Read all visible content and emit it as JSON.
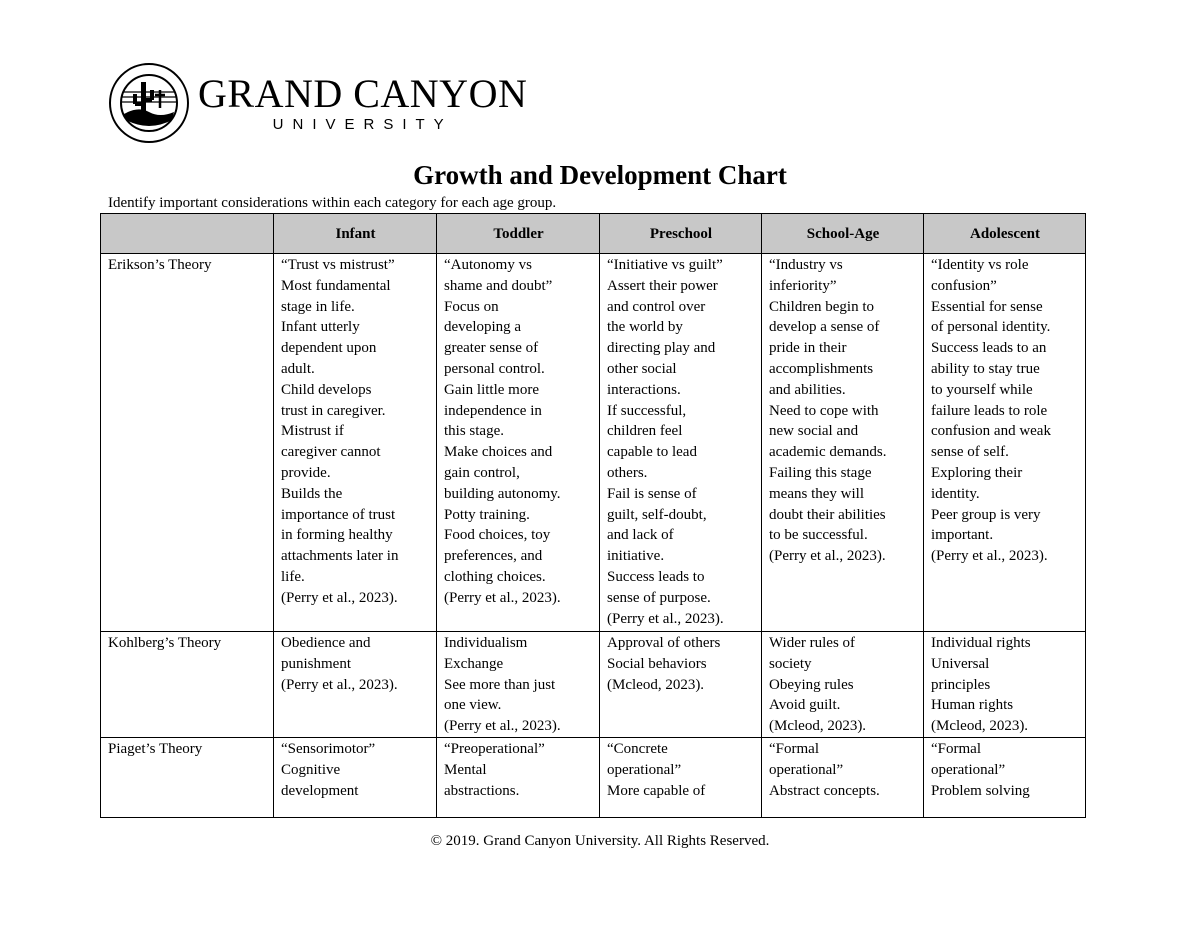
{
  "logo": {
    "line1": "GRAND CANYON",
    "line2": "UNIVERSITY",
    "seal_text": "GRAND CANYON UNIVERSITY ARIZONA 1949"
  },
  "title": "Growth and Development Chart",
  "instructions": "Identify important considerations within each category for each age group.",
  "table": {
    "headers": [
      "",
      "Infant",
      "Toddler",
      "Preschool",
      "School-Age",
      "Adolescent"
    ],
    "rows": [
      {
        "label": "Erikson’s Theory",
        "cells": [
          [
            "“Trust vs mistrust”",
            "Most fundamental",
            "stage in life.",
            "Infant utterly",
            "dependent upon",
            "adult.",
            "Child develops",
            "trust in caregiver.",
            "Mistrust if",
            "caregiver cannot",
            "provide.",
            "Builds the",
            "importance of trust",
            "in forming healthy",
            "attachments later in",
            "life.",
            "(Perry et al., 2023)."
          ],
          [
            "“Autonomy vs",
            "shame and doubt”",
            "Focus on",
            "developing a",
            "greater sense of",
            "personal control.",
            "Gain little more",
            "independence in",
            "this stage.",
            "Make choices and",
            "gain control,",
            "building autonomy.",
            "Potty training.",
            "Food choices, toy",
            "preferences, and",
            "clothing choices.",
            "(Perry et al., 2023)."
          ],
          [
            "“Initiative vs guilt”",
            "Assert their power",
            "and control over",
            "the world by",
            "directing play and",
            "other social",
            "interactions.",
            "If successful,",
            "children feel",
            "capable to lead",
            "others.",
            "Fail is sense of",
            "guilt, self-doubt,",
            "and lack of",
            "initiative.",
            "Success leads to",
            "sense of purpose.",
            "(Perry et al., 2023)."
          ],
          [
            "“Industry vs",
            "inferiority”",
            "Children begin to",
            "develop a sense of",
            "pride in their",
            "accomplishments",
            "and abilities.",
            "Need to cope with",
            "new social and",
            "academic demands.",
            "Failing this stage",
            "means they will",
            "doubt their abilities",
            "to be successful.",
            "(Perry et al., 2023)."
          ],
          [
            "“Identity vs role",
            "confusion”",
            "Essential for sense",
            "of personal identity.",
            "Success leads to an",
            "ability to stay true",
            "to yourself while",
            "failure leads to role",
            "confusion and weak",
            "sense of self.",
            "Exploring their",
            "identity.",
            "Peer group is very",
            "important.",
            "(Perry et al., 2023)."
          ]
        ]
      },
      {
        "label": "Kohlberg’s Theory",
        "cells": [
          [
            "Obedience and",
            "punishment",
            "(Perry et al., 2023)."
          ],
          [
            "Individualism",
            "Exchange",
            "See more than just",
            "one view.",
            "(Perry et al., 2023)."
          ],
          [
            "Approval of others",
            "Social behaviors",
            "(Mcleod, 2023)."
          ],
          [
            "Wider rules of",
            "society",
            "Obeying rules",
            "Avoid guilt.",
            "(Mcleod, 2023)."
          ],
          [
            "Individual rights",
            "Universal",
            "principles",
            "Human rights",
            "(Mcleod, 2023)."
          ]
        ]
      },
      {
        "label": "Piaget’s Theory",
        "cells": [
          [
            "“Sensorimotor”",
            "Cognitive",
            "development"
          ],
          [
            "“Preoperational”",
            "Mental",
            "abstractions."
          ],
          [
            "“Concrete",
            "operational”",
            "More capable of"
          ],
          [
            "“Formal",
            "operational”",
            "Abstract concepts."
          ],
          [
            "“Formal",
            "operational”",
            "Problem solving"
          ]
        ]
      }
    ]
  },
  "footer": "© 2019. Grand Canyon University. All Rights Reserved.",
  "colors": {
    "header_bg": "#c8c8c8",
    "border": "#000000"
  }
}
